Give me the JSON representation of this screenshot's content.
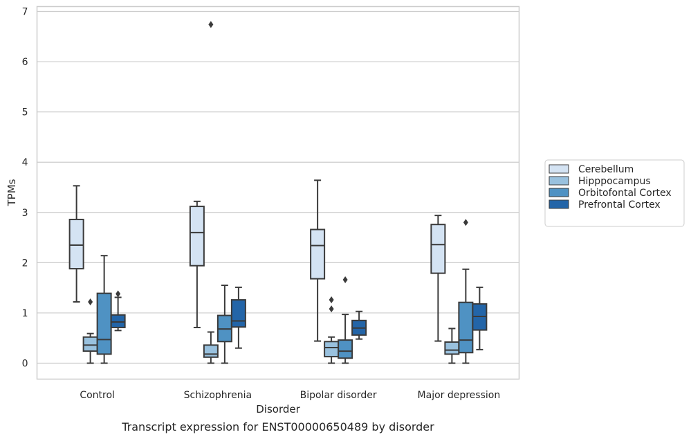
{
  "chart_data": {
    "type": "box",
    "xlabel": "Disorder",
    "ylabel": "TPMs",
    "caption": "Transcript expression for ENST00000650489 by disorder",
    "ylim": [
      -0.32,
      7.1
    ],
    "yticks": [
      0,
      1,
      2,
      3,
      4,
      5,
      6,
      7
    ],
    "grid": "horizontal",
    "legend_position": "right",
    "categories": [
      "Control",
      "Schizophrenia",
      "Bipolar disorder",
      "Major depression"
    ],
    "series": [
      {
        "name": "Cerebellum",
        "color": "#d4e3f3",
        "boxes": [
          {
            "whisker_low": 1.22,
            "q1": 1.88,
            "median": 2.35,
            "q3": 2.86,
            "whisker_high": 3.53,
            "outliers": []
          },
          {
            "whisker_low": 0.71,
            "q1": 1.94,
            "median": 2.6,
            "q3": 3.12,
            "whisker_high": 3.22,
            "outliers": []
          },
          {
            "whisker_low": 0.44,
            "q1": 1.68,
            "median": 2.34,
            "q3": 2.66,
            "whisker_high": 3.64,
            "outliers": []
          },
          {
            "whisker_low": 0.44,
            "q1": 1.79,
            "median": 2.36,
            "q3": 2.76,
            "whisker_high": 2.94,
            "outliers": []
          }
        ]
      },
      {
        "name": "Hipppocampus",
        "color": "#99c1de",
        "boxes": [
          {
            "whisker_low": 0.0,
            "q1": 0.24,
            "median": 0.36,
            "q3": 0.52,
            "whisker_high": 0.59,
            "outliers": [
              1.22
            ]
          },
          {
            "whisker_low": 0.0,
            "q1": 0.12,
            "median": 0.18,
            "q3": 0.36,
            "whisker_high": 0.62,
            "outliers": [
              6.74
            ]
          },
          {
            "whisker_low": 0.0,
            "q1": 0.13,
            "median": 0.31,
            "q3": 0.43,
            "whisker_high": 0.52,
            "outliers": [
              1.08,
              1.26
            ]
          },
          {
            "whisker_low": 0.0,
            "q1": 0.18,
            "median": 0.26,
            "q3": 0.42,
            "whisker_high": 0.69,
            "outliers": []
          }
        ]
      },
      {
        "name": "Orbitofontal Cortex",
        "color": "#4f92c3",
        "boxes": [
          {
            "whisker_low": 0.0,
            "q1": 0.18,
            "median": 0.47,
            "q3": 1.39,
            "whisker_high": 2.14,
            "outliers": []
          },
          {
            "whisker_low": 0.0,
            "q1": 0.43,
            "median": 0.68,
            "q3": 0.95,
            "whisker_high": 1.55,
            "outliers": []
          },
          {
            "whisker_low": 0.0,
            "q1": 0.1,
            "median": 0.24,
            "q3": 0.46,
            "whisker_high": 0.97,
            "outliers": [
              1.66
            ]
          },
          {
            "whisker_low": 0.0,
            "q1": 0.21,
            "median": 0.46,
            "q3": 1.21,
            "whisker_high": 1.87,
            "outliers": [
              2.8
            ]
          }
        ]
      },
      {
        "name": "Prefrontal Cortex",
        "color": "#2365a8",
        "boxes": [
          {
            "whisker_low": 0.65,
            "q1": 0.71,
            "median": 0.82,
            "q3": 0.96,
            "whisker_high": 1.31,
            "outliers": [
              1.38
            ]
          },
          {
            "whisker_low": 0.3,
            "q1": 0.72,
            "median": 0.84,
            "q3": 1.26,
            "whisker_high": 1.51,
            "outliers": []
          },
          {
            "whisker_low": 0.48,
            "q1": 0.56,
            "median": 0.7,
            "q3": 0.85,
            "whisker_high": 1.03,
            "outliers": []
          },
          {
            "whisker_low": 0.27,
            "q1": 0.66,
            "median": 0.93,
            "q3": 1.18,
            "whisker_high": 1.51,
            "outliers": []
          }
        ]
      }
    ]
  }
}
